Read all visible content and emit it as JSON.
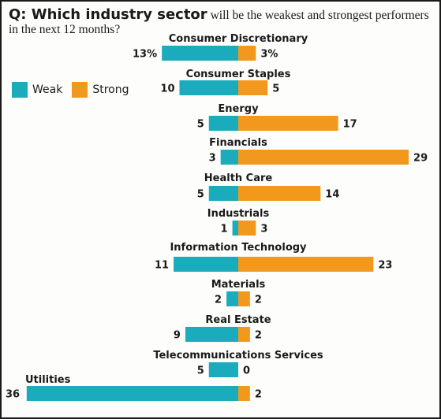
{
  "header": {
    "question_bold": "Q: Which industry sector",
    "question_rest": " will be the weakest and strongest performers",
    "question_line2": "in the next 12 months?"
  },
  "legend": {
    "weak_label": "Weak",
    "strong_label": "Strong"
  },
  "colors": {
    "weak": "#1aabbc",
    "strong": "#f2991d"
  },
  "chart_data": {
    "type": "bar",
    "orientation": "horizontal-diverging",
    "title": "Q: Which industry sector will be the weakest and strongest performers in the next 12 months?",
    "categories": [
      "Consumer Discretionary",
      "Consumer Staples",
      "Energy",
      "Financials",
      "Health Care",
      "Industrials",
      "Information Technology",
      "Materials",
      "Real Estate",
      "Telecommunications Services",
      "Utilities"
    ],
    "series": [
      {
        "name": "Weak",
        "values": [
          13,
          10,
          5,
          3,
          5,
          1,
          11,
          2,
          9,
          5,
          36
        ],
        "labels": [
          "13%",
          "10",
          "5",
          "3",
          "5",
          "1",
          "11",
          "2",
          "9",
          "5",
          "36"
        ]
      },
      {
        "name": "Strong",
        "values": [
          3,
          5,
          17,
          29,
          14,
          3,
          23,
          2,
          2,
          0,
          2
        ],
        "labels": [
          "3%",
          "5",
          "17",
          "29",
          "14",
          "3",
          "23",
          "2",
          "2",
          "0",
          "2"
        ]
      }
    ],
    "legend_position": "left",
    "grid": false
  }
}
